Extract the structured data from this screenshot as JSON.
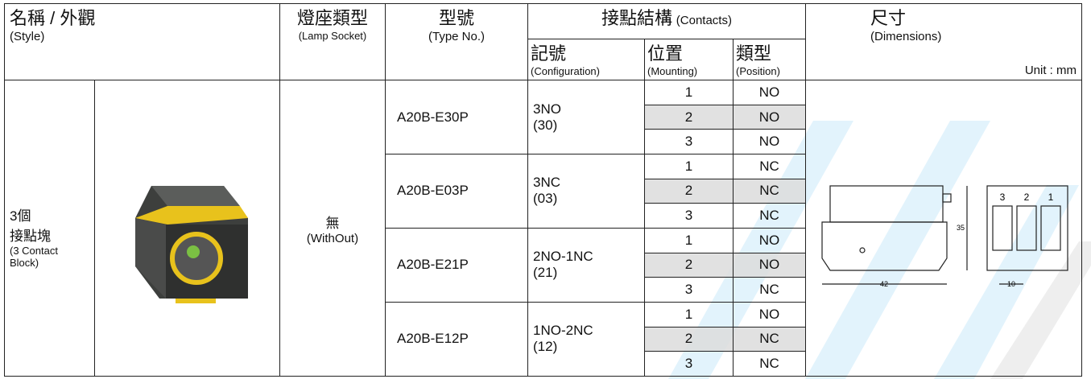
{
  "header": {
    "style_zh": "名稱 / 外觀",
    "style_en": "(Style)",
    "lamp_zh": "燈座類型",
    "lamp_en": "(Lamp Socket)",
    "type_zh": "型號",
    "type_en": "(Type No.)",
    "contacts_zh": "接點結構",
    "contacts_en": "(Contacts)",
    "config_zh": "記號",
    "config_en": "(Configuration)",
    "mounting_zh": "位置",
    "mounting_en": "(Mounting)",
    "position_zh": "類型",
    "position_en": "(Position)",
    "dim_zh": "尺寸",
    "dim_en": "(Dimensions)",
    "unit": "Unit : mm"
  },
  "body": {
    "style_lines": [
      "3個",
      "接點塊",
      "(3 Contact",
      "Block)"
    ],
    "lamp_zh": "無",
    "lamp_en": "(WithOut)",
    "groups": [
      {
        "type": "A20B-E30P",
        "config": "3NO",
        "code": "(30)",
        "rows": [
          {
            "mounting": "1",
            "position": "NO"
          },
          {
            "mounting": "2",
            "position": "NO"
          },
          {
            "mounting": "3",
            "position": "NO"
          }
        ]
      },
      {
        "type": "A20B-E03P",
        "config": "3NC",
        "code": "(03)",
        "rows": [
          {
            "mounting": "1",
            "position": "NC"
          },
          {
            "mounting": "2",
            "position": "NC"
          },
          {
            "mounting": "3",
            "position": "NC"
          }
        ]
      },
      {
        "type": "A20B-E21P",
        "config": "2NO-1NC",
        "code": "(21)",
        "rows": [
          {
            "mounting": "1",
            "position": "NO"
          },
          {
            "mounting": "2",
            "position": "NO"
          },
          {
            "mounting": "3",
            "position": "NC"
          }
        ]
      },
      {
        "type": "A20B-E12P",
        "config": "1NO-2NC",
        "code": "(12)",
        "rows": [
          {
            "mounting": "1",
            "position": "NO"
          },
          {
            "mounting": "2",
            "position": "NC"
          },
          {
            "mounting": "3",
            "position": "NC"
          }
        ]
      }
    ]
  },
  "drawing": {
    "height": "35",
    "width": "42",
    "pitch": "10",
    "slots": [
      "3",
      "2",
      "1"
    ]
  }
}
